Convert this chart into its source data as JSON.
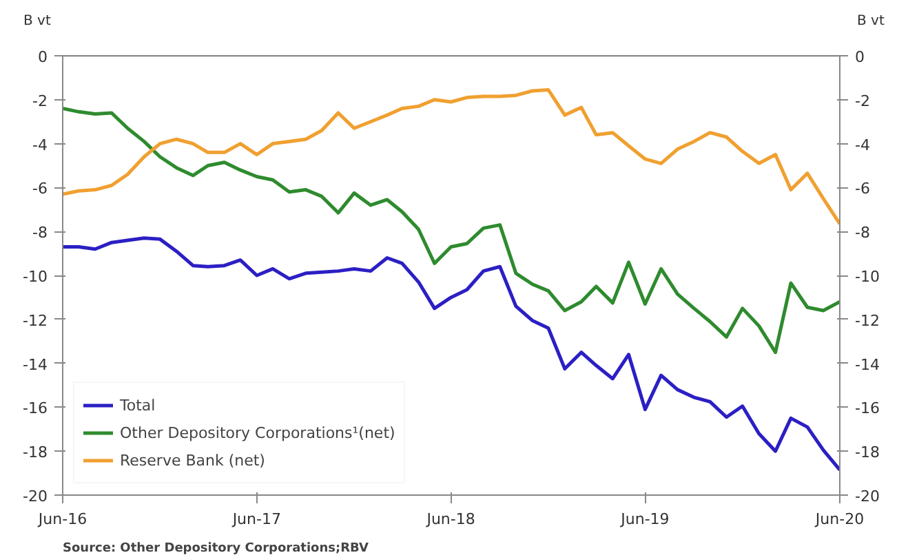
{
  "chart_data": {
    "type": "line",
    "ylabel": "B vt",
    "y2label": "B vt",
    "x": [
      "2016-06",
      "2016-07",
      "2016-08",
      "2016-09",
      "2016-10",
      "2016-11",
      "2016-12",
      "2017-01",
      "2017-02",
      "2017-03",
      "2017-04",
      "2017-05",
      "2017-06",
      "2017-07",
      "2017-08",
      "2017-09",
      "2017-10",
      "2017-11",
      "2017-12",
      "2018-01",
      "2018-02",
      "2018-03",
      "2018-04",
      "2018-05",
      "2018-06",
      "2018-07",
      "2018-08",
      "2018-09",
      "2018-10",
      "2018-11",
      "2018-12",
      "2019-01",
      "2019-02",
      "2019-03",
      "2019-04",
      "2019-05",
      "2019-06",
      "2019-07",
      "2019-08",
      "2019-09",
      "2019-10",
      "2019-11",
      "2019-12",
      "2020-01",
      "2020-02",
      "2020-03",
      "2020-04",
      "2020-05",
      "2020-06"
    ],
    "series": [
      {
        "name": "Total",
        "color": "#2b1fc4",
        "values": [
          -8.7,
          -8.7,
          -8.8,
          -8.5,
          -8.4,
          -8.3,
          -8.35,
          -8.9,
          -9.55,
          -9.6,
          -9.55,
          -9.3,
          -10.0,
          -9.7,
          -10.15,
          -9.9,
          -9.85,
          -9.8,
          -9.7,
          -9.8,
          -9.2,
          -9.45,
          -10.3,
          -11.5,
          -11.0,
          -10.65,
          -9.8,
          -9.6,
          -11.4,
          -12.05,
          -12.4,
          -14.25,
          -13.5,
          -14.1,
          -14.7,
          -13.6,
          -16.1,
          -14.55,
          -15.2,
          -15.55,
          -15.75,
          -16.45,
          -15.95,
          -17.2,
          -18.0,
          -16.5,
          -16.9,
          -17.95,
          -18.85
        ]
      },
      {
        "name": "Other Depository Corporations¹(net)",
        "color": "#2e8b2e",
        "values": [
          -2.4,
          -2.55,
          -2.65,
          -2.6,
          -3.3,
          -3.9,
          -4.6,
          -5.1,
          -5.45,
          -5.0,
          -4.85,
          -5.2,
          -5.5,
          -5.65,
          -6.2,
          -6.1,
          -6.4,
          -7.15,
          -6.25,
          -6.8,
          -6.55,
          -7.1,
          -7.9,
          -9.45,
          -8.7,
          -8.55,
          -7.85,
          -7.7,
          -9.9,
          -10.4,
          -10.7,
          -11.6,
          -11.2,
          -10.5,
          -11.25,
          -9.4,
          -11.3,
          -9.7,
          -10.85,
          -11.5,
          -12.1,
          -12.8,
          -11.5,
          -12.3,
          -13.5,
          -10.35,
          -11.45,
          -11.6,
          -11.2
        ]
      },
      {
        "name": "Reserve Bank (net)",
        "color": "#f0a030",
        "values": [
          -6.3,
          -6.15,
          -6.1,
          -5.9,
          -5.4,
          -4.6,
          -4.0,
          -3.8,
          -4.0,
          -4.4,
          -4.4,
          -4.0,
          -4.5,
          -4.0,
          -3.9,
          -3.8,
          -3.4,
          -2.6,
          -3.3,
          -3.0,
          -2.7,
          -2.4,
          -2.3,
          -2.0,
          -2.1,
          -1.9,
          -1.85,
          -1.85,
          -1.8,
          -1.6,
          -1.55,
          -2.7,
          -2.35,
          -3.6,
          -3.5,
          -4.1,
          -4.7,
          -4.9,
          -4.25,
          -3.9,
          -3.5,
          -3.7,
          -4.35,
          -4.9,
          -4.5,
          -6.1,
          -5.35,
          -6.5,
          -7.65
        ]
      }
    ],
    "xlim": [
      "2016-06",
      "2020-06"
    ],
    "xticks": [
      {
        "value": "2016-06",
        "label": "Jun-16"
      },
      {
        "value": "2017-06",
        "label": "Jun-17"
      },
      {
        "value": "2018-06",
        "label": "Jun-18"
      },
      {
        "value": "2019-06",
        "label": "Jun-19"
      },
      {
        "value": "2020-06",
        "label": "Jun-20"
      }
    ],
    "ylim": [
      -20,
      0
    ],
    "yticks": [
      -20,
      -18,
      -16,
      -14,
      -12,
      -10,
      -8,
      -6,
      -4,
      -2,
      0
    ],
    "y2lim": [
      -20,
      0
    ],
    "y2ticks": [
      -20,
      -18,
      -16,
      -14,
      -12,
      -10,
      -8,
      -6,
      -4,
      -2,
      0
    ],
    "ref_lines": [
      {
        "axis": "y",
        "value": 0
      }
    ],
    "grid": false,
    "legend": "bottom left",
    "line_style": "solid",
    "marker": "none",
    "annotations": [
      "Source: Other Depository Corporations;RBV"
    ]
  }
}
